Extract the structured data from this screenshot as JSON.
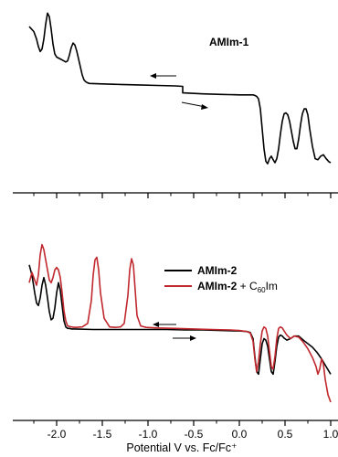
{
  "chart_data": [
    {
      "type": "line",
      "panel": "upper",
      "annotation": "AMIm-1",
      "xlim": [
        -2.3,
        1.0
      ],
      "ylim": [
        -1.6,
        1.7
      ],
      "series": [
        {
          "name": "AMIm-1",
          "color": "#000000",
          "x": [
            -2.3,
            -2.25,
            -2.22,
            -2.2,
            -2.18,
            -2.16,
            -2.14,
            -2.12,
            -2.1,
            -2.08,
            -2.06,
            -2.04,
            -2.02,
            -2.0,
            -1.98,
            -1.96,
            -1.94,
            -1.92,
            -1.9,
            -1.88,
            -1.86,
            -1.84,
            -1.82,
            -1.8,
            -1.78,
            -1.76,
            -1.74,
            -1.72,
            -1.7,
            -1.68,
            -1.66,
            -1.64,
            -1.5,
            -1.3,
            -1.1,
            -0.9,
            -0.7,
            -0.62,
            -0.62,
            -0.4,
            -0.2,
            0.0,
            0.1,
            0.15,
            0.17,
            0.19,
            0.21,
            0.23,
            0.25,
            0.27,
            0.29,
            0.31,
            0.33,
            0.35,
            0.37,
            0.39,
            0.41,
            0.43,
            0.45,
            0.47,
            0.49,
            0.51,
            0.53,
            0.55,
            0.57,
            0.59,
            0.61,
            0.63,
            0.65,
            0.67,
            0.69,
            0.71,
            0.73,
            0.75,
            0.77,
            0.8,
            0.83,
            0.86,
            0.89,
            0.92,
            0.95,
            0.98,
            1.0
          ],
          "y": [
            1.35,
            1.25,
            1.1,
            0.95,
            0.85,
            0.9,
            1.1,
            1.4,
            1.62,
            1.55,
            1.3,
            1.0,
            0.8,
            0.74,
            0.72,
            0.7,
            0.68,
            0.66,
            0.64,
            0.66,
            0.78,
            0.93,
            1.02,
            0.98,
            0.86,
            0.7,
            0.54,
            0.38,
            0.28,
            0.24,
            0.22,
            0.21,
            0.2,
            0.19,
            0.18,
            0.17,
            0.16,
            0.15,
            0.02,
            0.0,
            -0.01,
            -0.02,
            -0.02,
            -0.02,
            -0.03,
            -0.05,
            -0.1,
            -0.3,
            -0.7,
            -1.1,
            -1.35,
            -1.4,
            -1.3,
            -1.25,
            -1.32,
            -1.38,
            -1.3,
            -1.1,
            -0.8,
            -0.55,
            -0.4,
            -0.38,
            -0.42,
            -0.55,
            -0.75,
            -0.95,
            -1.1,
            -1.1,
            -0.9,
            -0.62,
            -0.4,
            -0.3,
            -0.3,
            -0.42,
            -0.7,
            -1.05,
            -1.3,
            -1.32,
            -1.25,
            -1.22,
            -1.3,
            -1.36,
            -1.38
          ]
        }
      ],
      "annotations": [
        "AMIm-1"
      ]
    },
    {
      "type": "line",
      "panel": "lower",
      "xlabel": "Potential V vs. Fc/Fc⁺",
      "xlim": [
        -2.3,
        1.0
      ],
      "xticks": [
        "-2.0",
        "-1.5",
        "-1.0",
        "-0.5",
        "0.0",
        "0.5",
        "1.0"
      ],
      "xtick_values": [
        -2.0,
        -1.5,
        -1.0,
        -0.5,
        0.0,
        0.5,
        1.0
      ],
      "ylim": [
        -1.6,
        1.6
      ],
      "legend": {
        "placement": "top-right",
        "entries": [
          {
            "label": "AMIm-2",
            "color": "#000000"
          },
          {
            "label_bold": "AMIm-2",
            "label_rest": " + C",
            "label_sub": "60",
            "label_tail": "Im",
            "color": "#c0282d"
          }
        ]
      },
      "series": [
        {
          "name": "AMIm-2",
          "color": "#000000",
          "x": [
            -2.3,
            -2.27,
            -2.24,
            -2.22,
            -2.2,
            -2.18,
            -2.16,
            -2.14,
            -2.12,
            -2.1,
            -2.08,
            -2.06,
            -2.04,
            -2.02,
            -2.0,
            -1.98,
            -1.96,
            -1.94,
            -1.92,
            -1.9,
            -1.88,
            -1.86,
            -1.84,
            -1.8,
            -1.6,
            -1.4,
            -1.2,
            -1.0,
            -0.8,
            -0.6,
            -0.4,
            -0.2,
            0.0,
            0.08,
            0.12,
            0.15,
            0.17,
            0.19,
            0.21,
            0.23,
            0.25,
            0.27,
            0.29,
            0.31,
            0.33,
            0.35,
            0.37,
            0.39,
            0.41,
            0.43,
            0.45,
            0.47,
            0.49,
            0.52,
            0.56,
            0.6,
            0.65,
            0.7,
            0.75,
            0.8,
            0.85,
            0.9,
            0.95,
            1.0
          ],
          "y": [
            1.1,
            0.9,
            0.55,
            0.35,
            0.3,
            0.45,
            0.7,
            0.85,
            0.7,
            0.45,
            0.18,
            0.02,
            0.05,
            0.25,
            0.55,
            0.75,
            0.6,
            0.3,
            0.0,
            -0.12,
            -0.15,
            -0.15,
            -0.16,
            -0.16,
            -0.17,
            -0.17,
            -0.17,
            -0.17,
            -0.17,
            -0.18,
            -0.18,
            -0.19,
            -0.2,
            -0.21,
            -0.23,
            -0.35,
            -0.7,
            -1.0,
            -1.05,
            -0.75,
            -0.45,
            -0.35,
            -0.38,
            -0.5,
            -0.75,
            -1.0,
            -1.05,
            -0.8,
            -0.5,
            -0.32,
            -0.28,
            -0.3,
            -0.34,
            -0.38,
            -0.35,
            -0.3,
            -0.3,
            -0.38,
            -0.45,
            -0.52,
            -0.62,
            -0.75,
            -0.9,
            -1.05
          ]
        },
        {
          "name": "AMIm-2 + C60Im",
          "color": "#c0282d",
          "x": [
            -2.3,
            -2.27,
            -2.24,
            -2.22,
            -2.2,
            -2.18,
            -2.16,
            -2.14,
            -2.12,
            -2.1,
            -2.08,
            -2.06,
            -2.04,
            -2.02,
            -2.0,
            -1.98,
            -1.96,
            -1.94,
            -1.92,
            -1.9,
            -1.88,
            -1.84,
            -1.8,
            -1.72,
            -1.66,
            -1.62,
            -1.6,
            -1.58,
            -1.56,
            -1.54,
            -1.52,
            -1.48,
            -1.42,
            -1.36,
            -1.3,
            -1.26,
            -1.22,
            -1.2,
            -1.18,
            -1.16,
            -1.14,
            -1.12,
            -1.08,
            -1.02,
            -0.9,
            -0.7,
            -0.5,
            -0.3,
            -0.1,
            0.0,
            0.08,
            0.12,
            0.15,
            0.17,
            0.19,
            0.21,
            0.23,
            0.25,
            0.27,
            0.29,
            0.31,
            0.33,
            0.35,
            0.37,
            0.39,
            0.41,
            0.43,
            0.45,
            0.47,
            0.49,
            0.52,
            0.56,
            0.6,
            0.65,
            0.7,
            0.75,
            0.8,
            0.84,
            0.86,
            0.88,
            0.9,
            0.92,
            0.94,
            0.97,
            1.0
          ],
          "y": [
            0.75,
            0.95,
            0.8,
            0.7,
            0.9,
            1.3,
            1.5,
            1.4,
            1.2,
            1.0,
            0.8,
            0.75,
            0.85,
            1.0,
            1.05,
            1.0,
            0.85,
            0.55,
            0.2,
            0.0,
            -0.1,
            -0.12,
            -0.13,
            -0.12,
            -0.05,
            0.4,
            0.9,
            1.2,
            1.25,
            1.0,
            0.55,
            0.05,
            -0.12,
            -0.13,
            -0.12,
            -0.05,
            0.5,
            1.0,
            1.22,
            1.1,
            0.6,
            0.1,
            -0.1,
            -0.13,
            -0.14,
            -0.15,
            -0.16,
            -0.17,
            -0.18,
            -0.19,
            -0.21,
            -0.24,
            -0.4,
            -0.75,
            -1.0,
            -0.8,
            -0.45,
            -0.2,
            -0.12,
            -0.15,
            -0.3,
            -0.6,
            -0.9,
            -0.95,
            -0.7,
            -0.35,
            -0.15,
            -0.12,
            -0.14,
            -0.2,
            -0.28,
            -0.35,
            -0.3,
            -0.32,
            -0.42,
            -0.55,
            -0.72,
            -0.9,
            -1.05,
            -0.95,
            -0.75,
            -0.85,
            -1.15,
            -1.45,
            -1.6
          ]
        }
      ]
    }
  ]
}
